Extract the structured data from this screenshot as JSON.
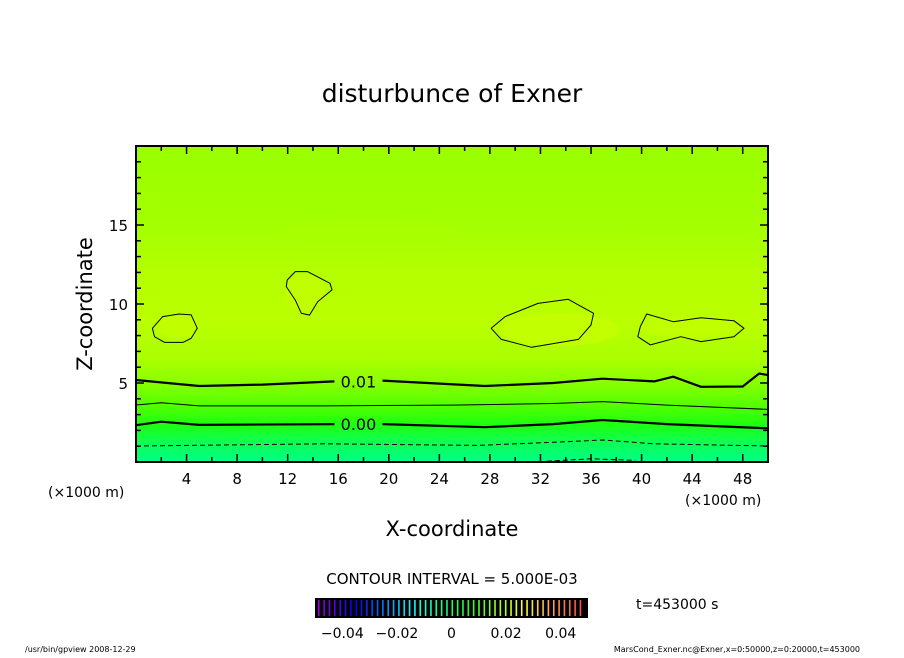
{
  "chart_data": {
    "type": "contour",
    "title": "disturbunce of Exner",
    "xlabel": "X-coordinate",
    "ylabel": "Z-coordinate",
    "x_unit": "(×1000 m)",
    "y_unit": "(×1000 m)",
    "xlim": [
      0,
      50
    ],
    "ylim": [
      0,
      20
    ],
    "x_ticks": [
      4,
      8,
      12,
      16,
      20,
      24,
      28,
      32,
      36,
      40,
      44,
      48
    ],
    "y_ticks": [
      5,
      10,
      15
    ],
    "contour_interval_label": "CONTOUR INTERVAL = 5.000E-03",
    "time_label": "t=453000 s",
    "colorbar": {
      "range": [
        -0.05,
        0.05
      ],
      "tick_values": [
        -0.04,
        -0.02,
        0,
        0.02,
        0.04
      ],
      "tick_labels": [
        "−0.04",
        "−0.02",
        "0",
        "0.02",
        "0.04"
      ]
    },
    "contours": [
      {
        "level": 0.01,
        "label": "0.01",
        "style": "thick",
        "segments": [
          [
            [
              0,
              5.19
            ],
            [
              5,
              4.81
            ],
            [
              10,
              4.9
            ],
            [
              15.7,
              5.1
            ]
          ],
          [
            [
              19.5,
              5.15
            ],
            [
              27.6,
              4.81
            ],
            [
              33,
              5.0
            ],
            [
              36.9,
              5.27
            ],
            [
              41,
              5.1
            ],
            [
              42.5,
              5.4
            ],
            [
              44.7,
              4.76
            ],
            [
              48,
              4.78
            ],
            [
              49.3,
              5.6
            ],
            [
              50,
              5.5
            ]
          ]
        ],
        "label_at": [
          17.6,
          5.1
        ]
      },
      {
        "level": 0.005,
        "style": "thin",
        "segments": [
          [
            [
              0,
              3.61
            ],
            [
              2,
              3.75
            ],
            [
              5,
              3.55
            ],
            [
              15,
              3.55
            ],
            [
              25,
              3.6
            ],
            [
              33,
              3.7
            ],
            [
              36.9,
              3.82
            ],
            [
              42,
              3.6
            ],
            [
              50,
              3.33
            ]
          ]
        ]
      },
      {
        "level": 0.0,
        "label": "0.00",
        "style": "thick",
        "segments": [
          [
            [
              0,
              2.33
            ],
            [
              2,
              2.55
            ],
            [
              5,
              2.35
            ],
            [
              15.7,
              2.4
            ]
          ],
          [
            [
              19.5,
              2.4
            ],
            [
              27.6,
              2.2
            ],
            [
              33,
              2.4
            ],
            [
              36.9,
              2.66
            ],
            [
              42,
              2.4
            ],
            [
              50,
              2.13
            ]
          ]
        ],
        "label_at": [
          17.6,
          2.4
        ]
      },
      {
        "level": -0.005,
        "style": "dashed",
        "segments": [
          [
            [
              0,
              1.01
            ],
            [
              15,
              1.15
            ],
            [
              27,
              1.05
            ],
            [
              33,
              1.25
            ],
            [
              36.9,
              1.39
            ],
            [
              41,
              1.15
            ],
            [
              50,
              1.01
            ]
          ],
          [
            [
              32.5,
              0.05
            ],
            [
              36,
              0.2
            ],
            [
              39.5,
              0.1
            ]
          ]
        ]
      },
      {
        "level": 0.015,
        "style": "thin",
        "closed": true,
        "segments": [
          [
            [
              1.3,
              8.46
            ],
            [
              2.11,
              9.2
            ],
            [
              3.4,
              9.37
            ],
            [
              4.37,
              9.31
            ],
            [
              4.85,
              8.46
            ],
            [
              4.37,
              7.83
            ],
            [
              3.72,
              7.57
            ],
            [
              2.27,
              7.57
            ],
            [
              1.46,
              7.93
            ]
          ],
          [
            [
              11.96,
              11.52
            ],
            [
              12.6,
              12.05
            ],
            [
              13.57,
              12.05
            ],
            [
              15.35,
              11.31
            ],
            [
              15.51,
              10.89
            ],
            [
              14.38,
              10.15
            ],
            [
              13.73,
              9.3
            ],
            [
              13.08,
              9.41
            ],
            [
              12.6,
              10.25
            ],
            [
              11.89,
              11.1
            ]
          ],
          [
            [
              28.1,
              8.46
            ],
            [
              29.2,
              9.2
            ],
            [
              31.8,
              10.04
            ],
            [
              34.2,
              10.3
            ],
            [
              35.0,
              9.94
            ],
            [
              36.2,
              9.41
            ],
            [
              36.0,
              8.67
            ],
            [
              35.0,
              7.76
            ],
            [
              31.3,
              7.26
            ],
            [
              28.9,
              7.76
            ]
          ],
          [
            [
              39.9,
              8.57
            ],
            [
              40.4,
              9.37
            ],
            [
              42.5,
              8.88
            ],
            [
              44.7,
              9.13
            ],
            [
              47.3,
              8.94
            ],
            [
              48.1,
              8.46
            ],
            [
              47.3,
              7.93
            ],
            [
              44.7,
              7.62
            ],
            [
              43.1,
              7.93
            ],
            [
              40.7,
              7.41
            ],
            [
              39.7,
              7.93
            ]
          ]
        ]
      }
    ]
  },
  "footer": {
    "left": "/usr/bin/gpview  2008-12-29",
    "right": "MarsCond_Exner.nc@Exner,x=0:50000,z=0:20000,t=453000"
  }
}
